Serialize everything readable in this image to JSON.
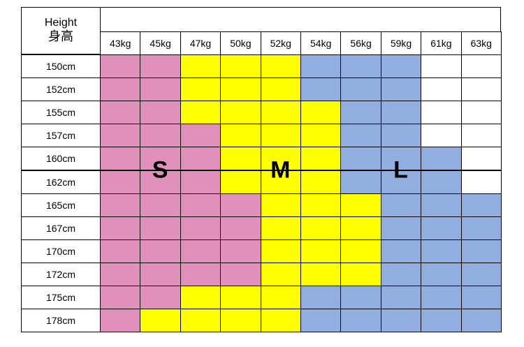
{
  "header": {
    "title_en": "Height",
    "title_zh": "身高"
  },
  "weights": [
    "43kg",
    "45kg",
    "47kg",
    "50kg",
    "52kg",
    "54kg",
    "56kg",
    "59kg",
    "61kg",
    "63kg"
  ],
  "heights": [
    "150cm",
    "152cm",
    "155cm",
    "157cm",
    "160cm",
    "162cm",
    "165cm",
    "167cm",
    "170cm",
    "172cm",
    "175cm",
    "178cm"
  ],
  "colors": {
    "S": "#e090bb",
    "M": "#ffff00",
    "L": "#90aedf",
    "blank": "#ffffff"
  },
  "size_grid": [
    [
      "S",
      "S",
      "M",
      "M",
      "M",
      "L",
      "L",
      "L",
      "",
      ""
    ],
    [
      "S",
      "S",
      "M",
      "M",
      "M",
      "L",
      "L",
      "L",
      "",
      ""
    ],
    [
      "S",
      "S",
      "M",
      "M",
      "M",
      "M",
      "L",
      "L",
      "",
      ""
    ],
    [
      "S",
      "S",
      "S",
      "M",
      "M",
      "M",
      "L",
      "L",
      "",
      ""
    ],
    [
      "S",
      "S",
      "S",
      "M",
      "M",
      "M",
      "L",
      "L",
      "L",
      ""
    ],
    [
      "S",
      "S",
      "S",
      "M",
      "M",
      "M",
      "L",
      "L",
      "L",
      ""
    ],
    [
      "S",
      "S",
      "S",
      "S",
      "M",
      "M",
      "M",
      "L",
      "L",
      "L"
    ],
    [
      "S",
      "S",
      "S",
      "S",
      "M",
      "M",
      "M",
      "L",
      "L",
      "L"
    ],
    [
      "S",
      "S",
      "S",
      "S",
      "M",
      "M",
      "M",
      "L",
      "L",
      "L"
    ],
    [
      "S",
      "S",
      "S",
      "S",
      "M",
      "M",
      "M",
      "L",
      "L",
      "L"
    ],
    [
      "S",
      "S",
      "M",
      "M",
      "M",
      "L",
      "L",
      "L",
      "L",
      "L"
    ],
    [
      "S",
      "M",
      "M",
      "M",
      "M",
      "L",
      "L",
      "L",
      "L",
      "L"
    ]
  ],
  "size_labels": [
    "S",
    "M",
    "L"
  ]
}
